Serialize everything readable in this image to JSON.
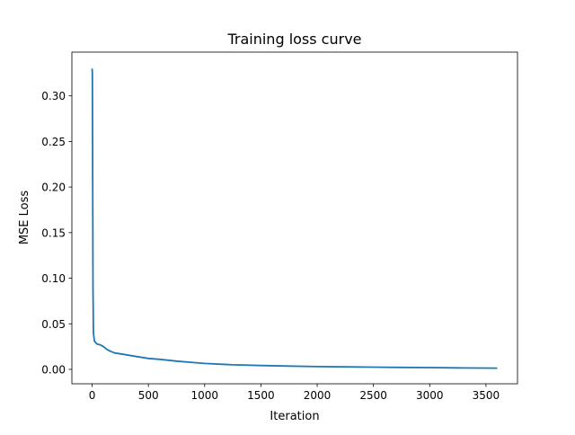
{
  "chart_data": {
    "type": "line",
    "title": "Training loss curve",
    "xlabel": "Iteration",
    "ylabel": "MSE Loss",
    "xlim": [
      -180,
      3780
    ],
    "ylim": [
      -0.0158,
      0.348
    ],
    "xticks": [
      0,
      500,
      1000,
      1500,
      2000,
      2500,
      3000,
      3500
    ],
    "xtick_labels": [
      "0",
      "500",
      "1000",
      "1500",
      "2000",
      "2500",
      "3000",
      "3500"
    ],
    "yticks": [
      0.0,
      0.05,
      0.1,
      0.15,
      0.2,
      0.25,
      0.3
    ],
    "ytick_labels": [
      "0.00",
      "0.05",
      "0.10",
      "0.15",
      "0.20",
      "0.25",
      "0.30"
    ],
    "grid": false,
    "line_color": "#1f77b4",
    "series": [
      {
        "x": [
          0,
          2,
          5,
          8,
          12,
          20,
          40,
          70,
          100,
          130,
          160,
          200,
          250,
          300,
          400,
          500,
          600,
          750,
          900,
          1000,
          1250,
          1500,
          1750,
          2000,
          2250,
          2500,
          2750,
          3000,
          3300,
          3600
        ],
        "y": [
          0.33,
          0.325,
          0.2,
          0.09,
          0.04,
          0.031,
          0.028,
          0.027,
          0.025,
          0.022,
          0.02,
          0.018,
          0.017,
          0.016,
          0.014,
          0.012,
          0.011,
          0.009,
          0.0075,
          0.0065,
          0.005,
          0.0042,
          0.0036,
          0.003,
          0.0027,
          0.0024,
          0.0021,
          0.0019,
          0.0016,
          0.0014
        ]
      }
    ]
  }
}
